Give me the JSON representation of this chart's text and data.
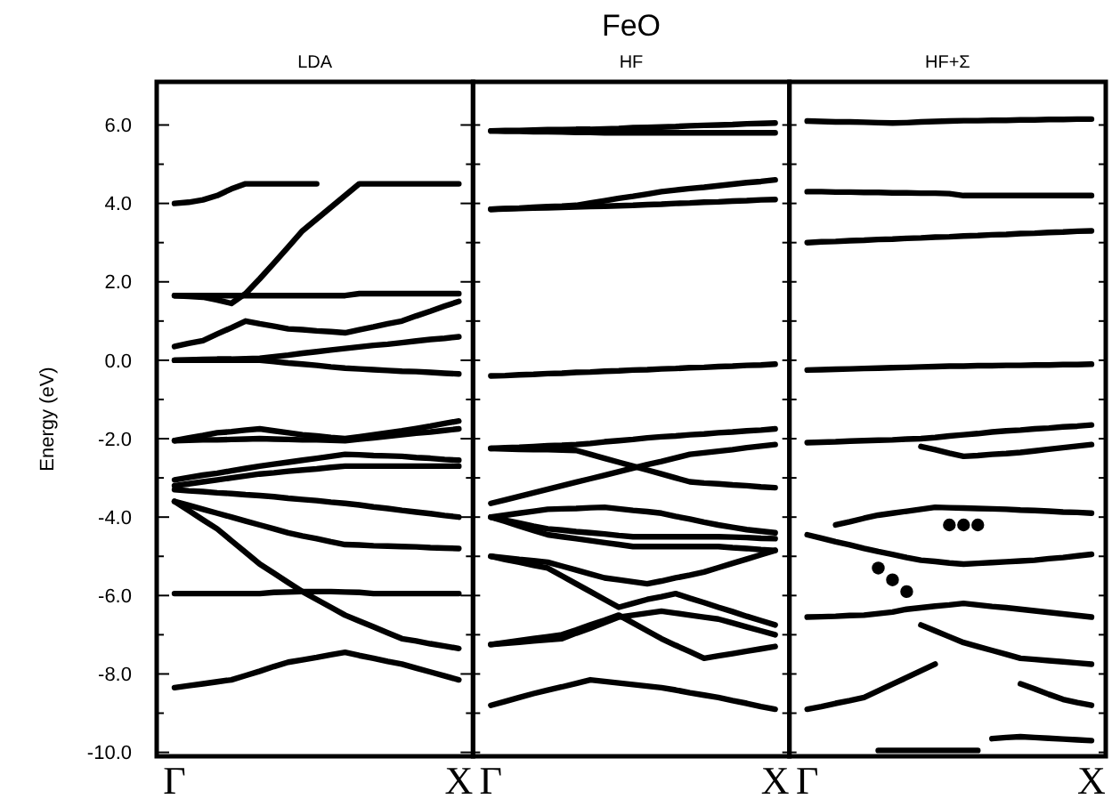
{
  "chart_data": [
    {
      "type": "line",
      "title": "LDA",
      "ylabel": "Energy (eV)",
      "annotations": [
        "FeO"
      ],
      "ylim": [
        -10.1,
        7.1
      ],
      "categories": [
        "Γ",
        null,
        null,
        null,
        null,
        null,
        null,
        null,
        null,
        null,
        null,
        null,
        null,
        null,
        null,
        null,
        null,
        null,
        null,
        null,
        "X"
      ],
      "yticks": [
        {
          "value": -10,
          "label": "-10.0"
        },
        {
          "value": -9,
          "label": null
        },
        {
          "value": -8,
          "label": "-8.0"
        },
        {
          "value": -7,
          "label": null
        },
        {
          "value": -6,
          "label": "-6.0"
        },
        {
          "value": -5,
          "label": null
        },
        {
          "value": -4,
          "label": "-4.0"
        },
        {
          "value": -3,
          "label": null
        },
        {
          "value": -2,
          "label": "-2.0"
        },
        {
          "value": -1,
          "label": null
        },
        {
          "value": 0,
          "label": "0.0"
        },
        {
          "value": 1,
          "label": null
        },
        {
          "value": 2,
          "label": "2.0"
        },
        {
          "value": 3,
          "label": null
        },
        {
          "value": 4,
          "label": "4.0"
        },
        {
          "value": 5,
          "label": null
        },
        {
          "value": 6,
          "label": "6.0"
        }
      ],
      "series": [
        {
          "color": "#000000",
          "values": [
            4.0,
            4.03,
            4.09,
            4.2,
            4.37,
            4.5,
            4.5,
            4.5,
            4.5,
            4.5,
            4.5,
            null,
            null,
            null,
            null,
            null,
            null,
            null,
            null,
            null,
            null
          ]
        },
        {
          "color": "#000000",
          "values": [
            1.65,
            1.63,
            1.61,
            1.54,
            1.45,
            1.7,
            2.08,
            2.48,
            2.89,
            3.3,
            3.6,
            3.9,
            4.2,
            4.5,
            4.5,
            4.5,
            4.5,
            4.5,
            4.5,
            4.5,
            4.5
          ]
        },
        {
          "color": "#000000",
          "values": [
            1.65,
            1.65,
            1.65,
            1.65,
            1.65,
            1.65,
            1.65,
            1.65,
            1.65,
            1.65,
            1.65,
            1.65,
            1.65,
            1.7,
            1.7,
            1.7,
            1.7,
            1.7,
            1.7,
            1.7,
            1.7
          ]
        },
        {
          "color": "#000000",
          "values": [
            0.35,
            0.43,
            0.5,
            0.67,
            0.83,
            1.0,
            0.93,
            0.87,
            0.8,
            0.78,
            0.75,
            0.73,
            0.7,
            0.78,
            0.85,
            0.93,
            1.0,
            1.13,
            1.25,
            1.38,
            1.5
          ]
        },
        {
          "color": "#000000",
          "values": [
            0,
            0.01,
            0.02,
            0.03,
            0.03,
            0.04,
            0.05,
            0.09,
            0.13,
            0.18,
            0.22,
            0.26,
            0.3,
            0.34,
            0.38,
            0.41,
            0.45,
            0.49,
            0.53,
            0.56,
            0.6
          ]
        },
        {
          "color": "#000000",
          "values": [
            0,
            0,
            0,
            0,
            0,
            0,
            0,
            -0.03,
            -0.07,
            -0.1,
            -0.13,
            -0.17,
            -0.2,
            -0.22,
            -0.24,
            -0.26,
            -0.28,
            -0.29,
            -0.31,
            -0.33,
            -0.35
          ]
        },
        {
          "color": "#000000",
          "values": [
            -2.05,
            -1.98,
            -1.92,
            -1.85,
            -1.82,
            -1.78,
            -1.75,
            -1.8,
            -1.85,
            -1.9,
            -1.93,
            -1.97,
            -2.0,
            -1.95,
            -1.9,
            -1.85,
            -1.8,
            -1.74,
            -1.68,
            -1.61,
            -1.55
          ]
        },
        {
          "color": "#000000",
          "values": [
            -2.05,
            -2.04,
            -2.03,
            -2.03,
            -2.02,
            -2.01,
            -2.0,
            -2.01,
            -2.02,
            -2.03,
            -2.03,
            -2.04,
            -2.05,
            -2.01,
            -1.98,
            -1.94,
            -1.9,
            -1.86,
            -1.83,
            -1.79,
            -1.75
          ]
        },
        {
          "color": "#000000",
          "values": [
            -3.05,
            -2.99,
            -2.93,
            -2.88,
            -2.82,
            -2.76,
            -2.7,
            -2.65,
            -2.6,
            -2.55,
            -2.5,
            -2.45,
            -2.4,
            -2.41,
            -2.43,
            -2.44,
            -2.45,
            -2.48,
            -2.5,
            -2.53,
            -2.55
          ]
        },
        {
          "color": "#000000",
          "values": [
            -3.2,
            -3.15,
            -3.1,
            -3.05,
            -3.0,
            -2.95,
            -2.9,
            -2.87,
            -2.83,
            -2.8,
            -2.77,
            -2.73,
            -2.7,
            -2.7,
            -2.7,
            -2.7,
            -2.7,
            -2.7,
            -2.7,
            -2.7,
            -2.7
          ]
        },
        {
          "color": "#000000",
          "values": [
            -3.3,
            -3.33,
            -3.35,
            -3.38,
            -3.4,
            -3.43,
            -3.45,
            -3.48,
            -3.52,
            -3.55,
            -3.58,
            -3.62,
            -3.65,
            -3.69,
            -3.74,
            -3.78,
            -3.83,
            -3.87,
            -3.91,
            -3.96,
            -4.0
          ]
        },
        {
          "color": "#000000",
          "values": [
            -3.6,
            -3.7,
            -3.8,
            -3.9,
            -4.0,
            -4.1,
            -4.2,
            -4.3,
            -4.4,
            -4.48,
            -4.55,
            -4.63,
            -4.7,
            -4.71,
            -4.73,
            -4.74,
            -4.75,
            -4.76,
            -4.78,
            -4.79,
            -4.8
          ]
        },
        {
          "color": "#000000",
          "values": [
            -3.6,
            -3.83,
            -4.07,
            -4.3,
            -4.6,
            -4.9,
            -5.2,
            -5.43,
            -5.67,
            -5.9,
            -6.1,
            -6.3,
            -6.5,
            -6.65,
            -6.8,
            -6.95,
            -7.1,
            -7.16,
            -7.23,
            -7.29,
            -7.35
          ]
        },
        {
          "color": "#000000",
          "values": [
            -5.95,
            -5.95,
            -5.95,
            -5.95,
            -5.95,
            -5.95,
            -5.95,
            -5.92,
            -5.91,
            -5.9,
            -5.9,
            -5.9,
            -5.91,
            -5.92,
            -5.95,
            -5.95,
            -5.95,
            -5.95,
            -5.95,
            -5.95,
            -5.95
          ]
        },
        {
          "color": "#000000",
          "values": [
            -8.35,
            -8.3,
            -8.25,
            -8.2,
            -8.15,
            -8.04,
            -7.93,
            -7.81,
            -7.7,
            -7.64,
            -7.58,
            -7.51,
            -7.45,
            -7.53,
            -7.6,
            -7.68,
            -7.75,
            -7.85,
            -7.95,
            -8.05,
            -8.15
          ]
        }
      ]
    },
    {
      "type": "line",
      "title": "HF",
      "tick_labels": "x",
      "ylim": [
        -10.1,
        7.1
      ],
      "categories": [
        "Γ",
        null,
        null,
        null,
        null,
        null,
        null,
        null,
        null,
        null,
        null,
        null,
        null,
        null,
        null,
        null,
        null,
        null,
        null,
        null,
        "X"
      ],
      "yticks": [
        {
          "value": -10,
          "label": null
        },
        {
          "value": -9,
          "label": null
        },
        {
          "value": -8,
          "label": null
        },
        {
          "value": -7,
          "label": null
        },
        {
          "value": -6,
          "label": null
        },
        {
          "value": -5,
          "label": null
        },
        {
          "value": -4,
          "label": null
        },
        {
          "value": -3,
          "label": null
        },
        {
          "value": -2,
          "label": null
        },
        {
          "value": -1,
          "label": null
        },
        {
          "value": 0,
          "label": null
        },
        {
          "value": 1,
          "label": null
        },
        {
          "value": 2,
          "label": null
        },
        {
          "value": 3,
          "label": null
        },
        {
          "value": 4,
          "label": null
        },
        {
          "value": 5,
          "label": null
        },
        {
          "value": 6,
          "label": null
        }
      ],
      "series": [
        {
          "color": "#000000",
          "values": [
            5.85,
            5.86,
            5.86,
            5.87,
            5.88,
            5.88,
            5.89,
            5.89,
            5.9,
            5.91,
            5.93,
            5.94,
            5.95,
            5.96,
            5.98,
            5.99,
            6.0,
            6.01,
            6.03,
            6.04,
            6.05
          ]
        },
        {
          "color": "#000000",
          "values": [
            5.85,
            5.84,
            5.84,
            5.83,
            5.83,
            5.82,
            5.81,
            5.81,
            5.8,
            5.8,
            5.8,
            5.8,
            5.8,
            5.8,
            5.8,
            5.8,
            5.8,
            5.8,
            5.8,
            5.8,
            5.8
          ]
        },
        {
          "color": "#000000",
          "values": [
            3.85,
            3.87,
            3.88,
            3.9,
            3.92,
            3.93,
            3.95,
            4.01,
            4.07,
            4.13,
            4.18,
            4.24,
            4.3,
            4.34,
            4.38,
            4.41,
            4.45,
            4.49,
            4.53,
            4.56,
            4.6
          ]
        },
        {
          "color": "#000000",
          "values": [
            3.85,
            3.86,
            3.87,
            3.88,
            3.89,
            3.9,
            3.91,
            3.92,
            3.93,
            3.94,
            3.95,
            3.97,
            3.98,
            4.0,
            4.01,
            4.03,
            4.04,
            4.06,
            4.07,
            4.09,
            4.1
          ]
        },
        {
          "color": "#000000",
          "values": [
            -0.4,
            -0.39,
            -0.37,
            -0.36,
            -0.34,
            -0.33,
            -0.31,
            -0.3,
            -0.28,
            -0.27,
            -0.25,
            -0.24,
            -0.22,
            -0.21,
            -0.19,
            -0.18,
            -0.16,
            -0.15,
            -0.13,
            -0.12,
            -0.1
          ]
        },
        {
          "color": "#000000",
          "values": [
            -2.25,
            -2.23,
            -2.22,
            -2.2,
            -2.18,
            -2.17,
            -2.15,
            -2.12,
            -2.08,
            -2.05,
            -2.02,
            -1.98,
            -1.95,
            -1.93,
            -1.9,
            -1.88,
            -1.85,
            -1.83,
            -1.8,
            -1.78,
            -1.75
          ]
        },
        {
          "color": "#000000",
          "values": [
            -2.25,
            -2.26,
            -2.27,
            -2.28,
            -2.28,
            -2.29,
            -2.3,
            -2.4,
            -2.5,
            -2.6,
            -2.7,
            -2.8,
            -2.9,
            -3.0,
            -3.1,
            -3.13,
            -3.15,
            -3.18,
            -3.2,
            -3.23,
            -3.25
          ]
        },
        {
          "color": "#000000",
          "values": [
            -3.65,
            -3.56,
            -3.47,
            -3.38,
            -3.29,
            -3.2,
            -3.11,
            -3.02,
            -2.93,
            -2.84,
            -2.75,
            -2.66,
            -2.58,
            -2.49,
            -2.4,
            -2.36,
            -2.32,
            -2.28,
            -2.23,
            -2.19,
            -2.15
          ]
        },
        {
          "color": "#000000",
          "values": [
            -4.0,
            -3.95,
            -3.9,
            -3.85,
            -3.8,
            -3.79,
            -3.78,
            -3.76,
            -3.75,
            -3.79,
            -3.83,
            -3.86,
            -3.9,
            -3.98,
            -4.05,
            -4.13,
            -4.2,
            -4.26,
            -4.32,
            -4.36,
            -4.4
          ]
        },
        {
          "color": "#000000",
          "values": [
            -4.0,
            -4.08,
            -4.15,
            -4.23,
            -4.3,
            -4.33,
            -4.37,
            -4.4,
            -4.43,
            -4.47,
            -4.5,
            -4.5,
            -4.5,
            -4.5,
            -4.5,
            -4.5,
            -4.5,
            -4.51,
            -4.52,
            -4.54,
            -4.55
          ]
        },
        {
          "color": "#000000",
          "values": [
            -4.0,
            -4.11,
            -4.23,
            -4.34,
            -4.45,
            -4.5,
            -4.55,
            -4.6,
            -4.65,
            -4.7,
            -4.75,
            -4.75,
            -4.75,
            -4.75,
            -4.75,
            -4.75,
            -4.75,
            -4.78,
            -4.8,
            -4.83,
            -4.85
          ]
        },
        {
          "color": "#000000",
          "values": [
            -5.0,
            -5.04,
            -5.08,
            -5.11,
            -5.15,
            -5.25,
            -5.35,
            -5.45,
            -5.55,
            -5.6,
            -5.65,
            -5.7,
            -5.63,
            -5.55,
            -5.48,
            -5.4,
            -5.29,
            -5.18,
            -5.07,
            -4.96,
            -4.85
          ]
        },
        {
          "color": "#000000",
          "values": [
            -5.0,
            -5.08,
            -5.15,
            -5.23,
            -5.3,
            -5.5,
            -5.7,
            -5.9,
            -6.1,
            -6.3,
            -6.2,
            -6.1,
            -6.03,
            -5.95,
            -6.07,
            -6.18,
            -6.3,
            -6.41,
            -6.53,
            -6.64,
            -6.75
          ]
        },
        {
          "color": "#000000",
          "values": [
            -7.25,
            -7.22,
            -7.19,
            -7.16,
            -7.13,
            -7.1,
            -6.96,
            -6.83,
            -6.69,
            -6.55,
            -6.5,
            -6.45,
            -6.4,
            -6.45,
            -6.5,
            -6.55,
            -6.6,
            -6.7,
            -6.8,
            -6.9,
            -7.0
          ]
        },
        {
          "color": "#000000",
          "values": [
            -7.25,
            -7.2,
            -7.15,
            -7.1,
            -7.05,
            -7.0,
            -6.88,
            -6.75,
            -6.63,
            -6.5,
            -6.7,
            -6.9,
            -7.1,
            -7.27,
            -7.43,
            -7.6,
            -7.54,
            -7.48,
            -7.42,
            -7.36,
            -7.3
          ]
        },
        {
          "color": "#000000",
          "values": [
            -8.8,
            -8.7,
            -8.6,
            -8.5,
            -8.41,
            -8.33,
            -8.24,
            -8.15,
            -8.19,
            -8.23,
            -8.27,
            -8.31,
            -8.35,
            -8.41,
            -8.48,
            -8.54,
            -8.6,
            -8.68,
            -8.75,
            -8.83,
            -8.9
          ]
        }
      ]
    },
    {
      "type": "line",
      "title": "HF+Σ",
      "tick_labels": "x",
      "ylim": [
        -10.1,
        7.1
      ],
      "categories": [
        "Γ",
        null,
        null,
        null,
        null,
        null,
        null,
        null,
        null,
        null,
        null,
        null,
        null,
        null,
        null,
        null,
        null,
        null,
        null,
        null,
        "X"
      ],
      "yticks": [
        {
          "value": -10,
          "label": null
        },
        {
          "value": -9,
          "label": null
        },
        {
          "value": -8,
          "label": null
        },
        {
          "value": -7,
          "label": null
        },
        {
          "value": -6,
          "label": null
        },
        {
          "value": -5,
          "label": null
        },
        {
          "value": -4,
          "label": null
        },
        {
          "value": -3,
          "label": null
        },
        {
          "value": -2,
          "label": null
        },
        {
          "value": -1,
          "label": null
        },
        {
          "value": 0,
          "label": null
        },
        {
          "value": 1,
          "label": null
        },
        {
          "value": 2,
          "label": null
        },
        {
          "value": 3,
          "label": null
        },
        {
          "value": 4,
          "label": null
        },
        {
          "value": 5,
          "label": null
        },
        {
          "value": 6,
          "label": null
        }
      ],
      "series": [
        {
          "color": "#000000",
          "values": [
            6.1,
            6.09,
            6.08,
            6.08,
            6.07,
            6.06,
            6.05,
            6.06,
            6.08,
            6.09,
            6.1,
            6.11,
            6.11,
            6.12,
            6.12,
            6.13,
            6.13,
            6.14,
            6.14,
            6.15,
            6.15
          ]
        },
        {
          "color": "#000000",
          "values": [
            4.3,
            4.3,
            4.29,
            4.29,
            4.28,
            4.28,
            4.27,
            4.27,
            4.26,
            4.26,
            4.25,
            4.2,
            4.2,
            4.2,
            4.2,
            4.2,
            4.2,
            4.2,
            4.2,
            4.2,
            4.2
          ]
        },
        {
          "color": "#000000",
          "values": [
            3.0,
            3.02,
            3.03,
            3.05,
            3.06,
            3.08,
            3.09,
            3.11,
            3.12,
            3.14,
            3.15,
            3.17,
            3.18,
            3.2,
            3.21,
            3.23,
            3.24,
            3.26,
            3.27,
            3.29,
            3.3
          ]
        },
        {
          "color": "#000000",
          "values": [
            -0.25,
            -0.24,
            -0.23,
            -0.22,
            -0.21,
            -0.2,
            -0.19,
            -0.18,
            -0.17,
            -0.16,
            -0.15,
            -0.15,
            -0.14,
            -0.14,
            -0.13,
            -0.13,
            -0.12,
            -0.12,
            -0.11,
            -0.11,
            -0.1
          ]
        },
        {
          "color": "#000000",
          "values": [
            -2.1,
            -2.09,
            -2.08,
            -2.06,
            -2.05,
            -2.04,
            -2.03,
            -2.01,
            -2.0,
            -1.97,
            -1.93,
            -1.9,
            -1.87,
            -1.83,
            -1.8,
            -1.78,
            -1.75,
            -1.73,
            -1.7,
            -1.68,
            -1.65
          ]
        },
        {
          "color": "#000000",
          "values": [
            null,
            null,
            null,
            null,
            null,
            null,
            null,
            null,
            -2.2,
            -2.28,
            -2.37,
            -2.45,
            -2.43,
            -2.4,
            -2.38,
            -2.35,
            -2.31,
            -2.27,
            -2.23,
            -2.19,
            -2.15
          ]
        },
        {
          "color": "#000000",
          "values": [
            null,
            null,
            -4.2,
            -4.12,
            -4.03,
            -3.95,
            -3.9,
            -3.85,
            -3.8,
            -3.75,
            -3.76,
            -3.77,
            -3.78,
            -3.79,
            -3.8,
            -3.82,
            -3.83,
            -3.85,
            -3.87,
            -3.88,
            -3.9
          ]
        },
        {
          "color": "#000000",
          "values": [
            -4.45,
            -4.54,
            -4.63,
            -4.71,
            -4.8,
            -4.88,
            -4.95,
            -5.03,
            -5.1,
            -5.13,
            -5.17,
            -5.2,
            -5.18,
            -5.16,
            -5.14,
            -5.12,
            -5.1,
            -5.06,
            -5.03,
            -4.99,
            -4.95
          ]
        },
        {
          "color": "#000000",
          "values": [
            -6.55,
            -6.54,
            -6.53,
            -6.51,
            -6.5,
            -6.46,
            -6.42,
            -6.35,
            -6.31,
            -6.27,
            -6.24,
            -6.2,
            -6.24,
            -6.28,
            -6.31,
            -6.35,
            -6.39,
            -6.43,
            -6.47,
            -6.51,
            -6.55
          ]
        },
        {
          "color": "#000000",
          "values": [
            null,
            null,
            null,
            null,
            null,
            null,
            null,
            null,
            -6.75,
            -6.9,
            -7.05,
            -7.2,
            -7.3,
            -7.4,
            -7.5,
            -7.6,
            -7.63,
            -7.66,
            -7.69,
            -7.72,
            -7.75
          ]
        },
        {
          "color": "#000000",
          "values": [
            -8.9,
            -8.83,
            -8.75,
            -8.68,
            -8.6,
            -8.43,
            -8.26,
            -8.09,
            -7.92,
            -7.75,
            null,
            null,
            null,
            null,
            null,
            null,
            null,
            null,
            null,
            null,
            null
          ]
        },
        {
          "color": "#000000",
          "values": [
            null,
            null,
            null,
            null,
            null,
            null,
            null,
            null,
            null,
            null,
            null,
            null,
            null,
            null,
            null,
            -8.25,
            -8.38,
            -8.52,
            -8.65,
            -8.73,
            -8.8
          ]
        },
        {
          "type": "scatter",
          "marker": "circle",
          "color": "#000000",
          "values": [
            null,
            null,
            null,
            null,
            null,
            -5.3,
            -5.6,
            -5.9,
            null,
            null,
            -4.2,
            -4.2,
            -4.2,
            null,
            null,
            null,
            null,
            null,
            null,
            null,
            null
          ]
        },
        {
          "color": "#000000",
          "values": [
            null,
            null,
            null,
            null,
            null,
            null,
            null,
            null,
            null,
            null,
            null,
            null,
            null,
            -9.65,
            -9.62,
            -9.6,
            -9.62,
            -9.64,
            -9.66,
            -9.68,
            -9.7
          ]
        },
        {
          "color": "#000000",
          "values": [
            null,
            null,
            null,
            null,
            null,
            -9.95,
            -9.95,
            -9.95,
            -9.95,
            -9.95,
            -9.95,
            -9.95,
            -9.95,
            null,
            null,
            null,
            null,
            null,
            null,
            null,
            null
          ]
        }
      ]
    }
  ]
}
